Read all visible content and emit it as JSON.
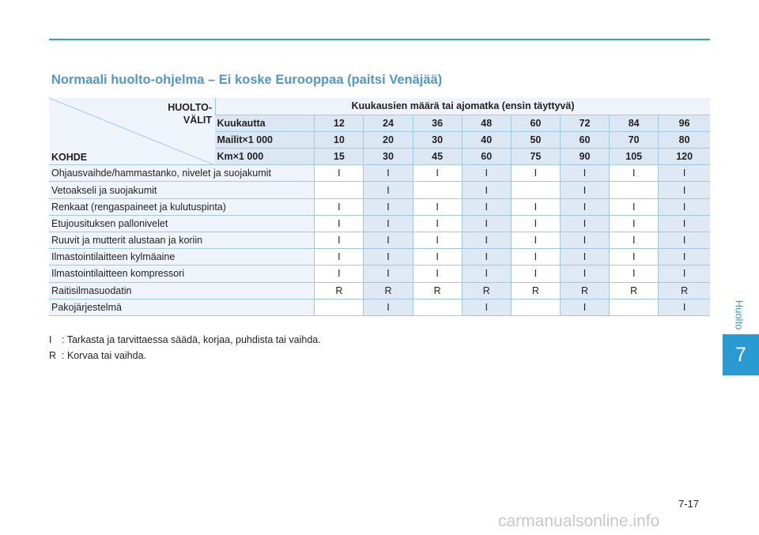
{
  "section_title": "Normaali huolto-ohjelma – Ei koske Eurooppaa (paitsi Venäjää)",
  "table": {
    "corner_interval_line1": "HUOLTO-",
    "corner_interval_line2": "VÄLIT",
    "corner_item": "KOHDE",
    "interval_heading": "Kuukausien määrä tai ajomatka (ensin täyttyvä)",
    "header_rows": [
      {
        "label": "Kuukautta",
        "values": [
          "12",
          "24",
          "36",
          "48",
          "60",
          "72",
          "84",
          "96"
        ]
      },
      {
        "label": "Mailit×1 000",
        "values": [
          "10",
          "20",
          "30",
          "40",
          "50",
          "60",
          "70",
          "80"
        ]
      },
      {
        "label": "Km×1 000",
        "values": [
          "15",
          "30",
          "45",
          "60",
          "75",
          "90",
          "105",
          "120"
        ]
      }
    ],
    "rows": [
      {
        "item": "Ohjausvaihde/hammastanko, nivelet ja suojakumit",
        "values": [
          "I",
          "I",
          "I",
          "I",
          "I",
          "I",
          "I",
          "I"
        ]
      },
      {
        "item": "Vetoakseli ja suojakumit",
        "values": [
          "",
          "I",
          "",
          "I",
          "",
          "I",
          "",
          "I"
        ]
      },
      {
        "item": "Renkaat (rengaspaineet ja kulutuspinta)",
        "values": [
          "I",
          "I",
          "I",
          "I",
          "I",
          "I",
          "I",
          "I"
        ]
      },
      {
        "item": "Etujousituksen pallonivelet",
        "values": [
          "I",
          "I",
          "I",
          "I",
          "I",
          "I",
          "I",
          "I"
        ]
      },
      {
        "item": "Ruuvit ja mutterit alustaan ja koriin",
        "values": [
          "I",
          "I",
          "I",
          "I",
          "I",
          "I",
          "I",
          "I"
        ]
      },
      {
        "item": "Ilmastointilaitteen kylmäaine",
        "values": [
          "I",
          "I",
          "I",
          "I",
          "I",
          "I",
          "I",
          "I"
        ]
      },
      {
        "item": "Ilmastointilaitteen kompressori",
        "values": [
          "I",
          "I",
          "I",
          "I",
          "I",
          "I",
          "I",
          "I"
        ]
      },
      {
        "item": "Raitisilmasuodatin",
        "values": [
          "R",
          "R",
          "R",
          "R",
          "R",
          "R",
          "R",
          "R"
        ]
      },
      {
        "item": "Pakojärjestelmä",
        "values": [
          "",
          "I",
          "",
          "I",
          "",
          "I",
          "",
          "I"
        ]
      }
    ]
  },
  "legend": [
    {
      "symbol": "I",
      "text": ": Tarkasta ja tarvittaessa säädä, korjaa, puhdista tai vaihda."
    },
    {
      "symbol": "R",
      "text": ": Korvaa tai vaihda."
    }
  ],
  "side_tab": {
    "label": "Huolto",
    "chapter": "7"
  },
  "page_number": "7-17",
  "watermark": "carmanualsonline.info",
  "colors": {
    "accent": "#2a9ad3",
    "title": "#4f97cf",
    "grid": "#9ecae6",
    "shade": "#dfe9f3",
    "tint": "#eef4fa"
  }
}
